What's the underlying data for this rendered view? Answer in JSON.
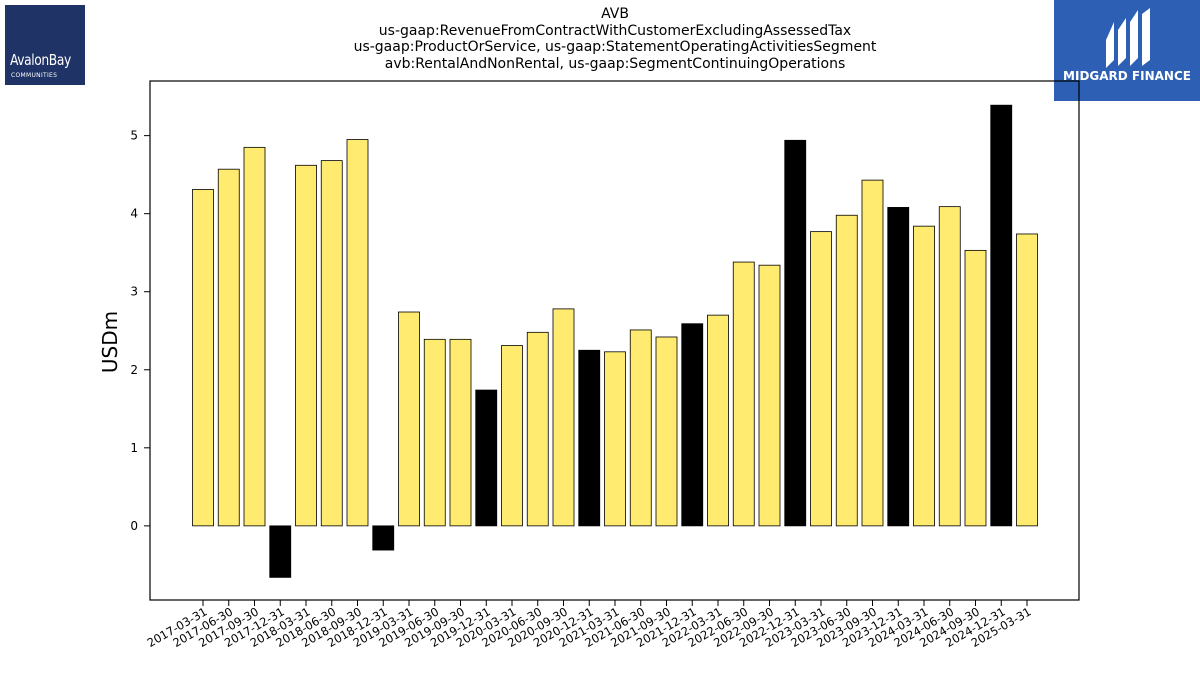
{
  "title_lines": [
    "AVB",
    "us-gaap:RevenueFromContractWithCustomerExcludingAssessedTax",
    "us-gaap:ProductOrService, us-gaap:StatementOperatingActivitiesSegment",
    "avb:RentalAndNonRental, us-gaap:SegmentContinuingOperations"
  ],
  "logo_left": {
    "name": "AvalonBay",
    "sub": "COMMUNITIES",
    "bg_color": "#1f3366"
  },
  "logo_right": {
    "name": "MIDGARD FINANCE",
    "bg_color": "#2d5fb4"
  },
  "chart_data": {
    "type": "bar",
    "title": "AVB us-gaap:RevenueFromContractWithCustomerExcludingAssessedTax us-gaap:ProductOrService, us-gaap:StatementOperatingActivitiesSegment avb:RentalAndNonRental, us-gaap:SegmentContinuingOperations",
    "xlabel": "",
    "ylabel": "USDm",
    "ylim": [
      -0.95,
      5.7
    ],
    "yticks": [
      0,
      1,
      2,
      3,
      4,
      5
    ],
    "grid": false,
    "categories": [
      "2017-03-31",
      "2017-06-30",
      "2017-09-30",
      "2017-12-31",
      "2018-03-31",
      "2018-06-30",
      "2018-09-30",
      "2018-12-31",
      "2019-03-31",
      "2019-06-30",
      "2019-09-30",
      "2019-12-31",
      "2020-03-31",
      "2020-06-30",
      "2020-09-30",
      "2020-12-31",
      "2021-03-31",
      "2021-06-30",
      "2021-09-30",
      "2021-12-31",
      "2022-03-31",
      "2022-06-30",
      "2022-09-30",
      "2022-12-31",
      "2023-03-31",
      "2023-06-30",
      "2023-09-30",
      "2023-12-31",
      "2024-03-31",
      "2024-06-30",
      "2024-09-30",
      "2024-12-31",
      "2025-03-31"
    ],
    "values": [
      4.31,
      4.57,
      4.85,
      -0.66,
      4.62,
      4.68,
      4.95,
      -0.31,
      2.74,
      2.39,
      2.39,
      1.74,
      2.31,
      2.48,
      2.78,
      2.25,
      2.23,
      2.51,
      2.42,
      2.59,
      2.7,
      3.38,
      3.34,
      4.94,
      3.77,
      3.98,
      4.43,
      4.08,
      3.84,
      4.09,
      3.53,
      5.39,
      3.74
    ],
    "highlight": [
      false,
      false,
      false,
      true,
      false,
      false,
      false,
      true,
      false,
      false,
      false,
      true,
      false,
      false,
      false,
      true,
      false,
      false,
      false,
      true,
      false,
      false,
      false,
      true,
      false,
      false,
      false,
      true,
      false,
      false,
      false,
      true,
      false
    ],
    "colors": {
      "bar": "#ffeb70",
      "highlight_bar": "#000000",
      "edge": "#000000"
    }
  }
}
